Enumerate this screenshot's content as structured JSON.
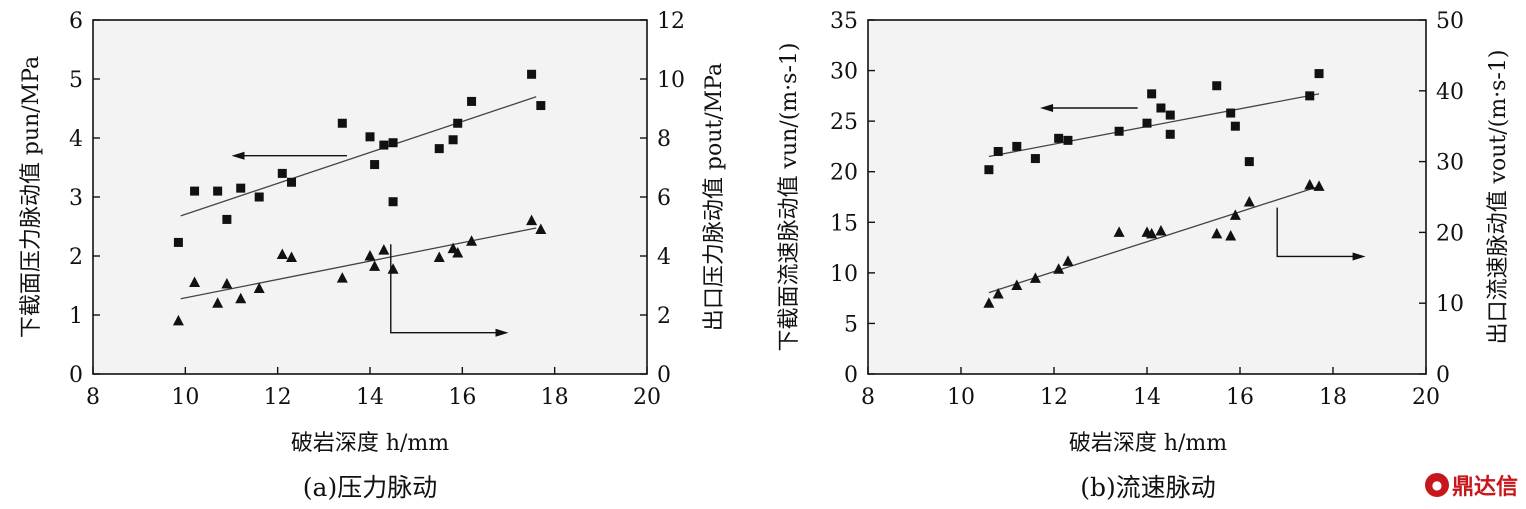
{
  "chart_data": [
    {
      "type": "scatter",
      "caption": "(a)压力脉动",
      "xlabel": "破岩深度 h/mm",
      "ylabel_left": "下截面压力脉动值 pun/MPa",
      "ylabel_right": "出口压力脉动值 pout/MPa",
      "xlim": [
        8,
        20
      ],
      "xticks": [
        "8",
        "10",
        "12",
        "14",
        "16",
        "18",
        "20"
      ],
      "ylim_left": [
        0,
        6
      ],
      "yticks_left": [
        "0",
        "1",
        "2",
        "3",
        "4",
        "5",
        "6"
      ],
      "ylim_right": [
        0,
        12
      ],
      "yticks_right": [
        "0",
        "2",
        "4",
        "6",
        "8",
        "10",
        "12"
      ],
      "series": [
        {
          "marker": "square",
          "axis": "left",
          "points": [
            [
              9.85,
              2.23
            ],
            [
              10.2,
              3.1
            ],
            [
              10.7,
              3.1
            ],
            [
              10.9,
              2.62
            ],
            [
              11.2,
              3.15
            ],
            [
              11.6,
              3.0
            ],
            [
              12.1,
              3.4
            ],
            [
              12.3,
              3.25
            ],
            [
              13.4,
              4.25
            ],
            [
              14.0,
              4.02
            ],
            [
              14.1,
              3.55
            ],
            [
              14.3,
              3.88
            ],
            [
              14.5,
              3.92
            ],
            [
              14.5,
              2.92
            ],
            [
              15.5,
              3.82
            ],
            [
              15.8,
              3.97
            ],
            [
              15.9,
              4.25
            ],
            [
              16.2,
              4.62
            ],
            [
              17.5,
              5.08
            ],
            [
              17.7,
              4.55
            ]
          ],
          "fit": [
            [
              9.9,
              2.68
            ],
            [
              17.6,
              4.7
            ]
          ]
        },
        {
          "marker": "triangle",
          "axis": "right",
          "points": [
            [
              9.85,
              1.8
            ],
            [
              10.2,
              3.1
            ],
            [
              10.7,
              2.4
            ],
            [
              10.9,
              3.05
            ],
            [
              11.2,
              2.55
            ],
            [
              11.6,
              2.9
            ],
            [
              12.1,
              4.05
            ],
            [
              12.3,
              3.95
            ],
            [
              13.4,
              3.25
            ],
            [
              14.0,
              4.0
            ],
            [
              14.1,
              3.65
            ],
            [
              14.3,
              4.2
            ],
            [
              14.5,
              3.55
            ],
            [
              15.5,
              3.95
            ],
            [
              15.8,
              4.25
            ],
            [
              15.9,
              4.1
            ],
            [
              16.2,
              4.5
            ],
            [
              17.5,
              5.2
            ],
            [
              17.7,
              4.9
            ]
          ],
          "fit": [
            [
              9.9,
              2.55
            ],
            [
              17.6,
              4.95
            ]
          ]
        }
      ],
      "arrow_left": {
        "from": [
          13.5,
          3.7
        ],
        "to": [
          11.0,
          3.7
        ],
        "axis": "left"
      },
      "arrow_right": {
        "from": [
          14.45,
          4.4
        ],
        "to": [
          14.45,
          1.4
        ],
        "end": [
          17.0,
          1.4
        ],
        "axis": "right"
      }
    },
    {
      "type": "scatter",
      "caption": "(b)流速脉动",
      "xlabel": "破岩深度 h/mm",
      "ylabel_left": "下截面流速脉动值 vun/(m·s-1)",
      "ylabel_right": "出口流速脉动值 vout/(m·s-1)",
      "xlim": [
        8,
        20
      ],
      "xticks": [
        "8",
        "10",
        "12",
        "14",
        "16",
        "18",
        "20"
      ],
      "ylim_left": [
        0,
        35
      ],
      "yticks_left": [
        "0",
        "5",
        "10",
        "15",
        "20",
        "25",
        "30",
        "35"
      ],
      "ylim_right": [
        0,
        50
      ],
      "yticks_right": [
        "0",
        "10",
        "20",
        "30",
        "40",
        "50"
      ],
      "series": [
        {
          "marker": "square",
          "axis": "left",
          "points": [
            [
              10.6,
              20.2
            ],
            [
              10.8,
              22.0
            ],
            [
              11.2,
              22.5
            ],
            [
              11.6,
              21.3
            ],
            [
              12.1,
              23.3
            ],
            [
              12.3,
              23.1
            ],
            [
              13.4,
              24.0
            ],
            [
              14.0,
              24.8
            ],
            [
              14.1,
              27.7
            ],
            [
              14.3,
              26.3
            ],
            [
              14.5,
              25.6
            ],
            [
              14.5,
              23.7
            ],
            [
              15.5,
              28.5
            ],
            [
              15.8,
              25.8
            ],
            [
              15.9,
              24.5
            ],
            [
              16.2,
              21.0
            ],
            [
              17.5,
              27.5
            ],
            [
              17.7,
              29.7
            ]
          ],
          "fit": [
            [
              10.6,
              21.5
            ],
            [
              17.7,
              27.7
            ]
          ]
        },
        {
          "marker": "triangle",
          "axis": "right",
          "points": [
            [
              10.6,
              10.0
            ],
            [
              10.8,
              11.3
            ],
            [
              11.2,
              12.5
            ],
            [
              11.6,
              13.5
            ],
            [
              12.1,
              14.8
            ],
            [
              12.3,
              15.9
            ],
            [
              13.4,
              20.0
            ],
            [
              14.0,
              20.0
            ],
            [
              14.1,
              19.8
            ],
            [
              14.3,
              20.2
            ],
            [
              15.5,
              19.8
            ],
            [
              15.8,
              19.5
            ],
            [
              15.9,
              22.4
            ],
            [
              16.2,
              24.3
            ],
            [
              17.5,
              26.7
            ],
            [
              17.7,
              26.5
            ]
          ],
          "fit": [
            [
              10.6,
              11.5
            ],
            [
              17.7,
              26.5
            ]
          ]
        }
      ],
      "arrow_left": {
        "from": [
          13.8,
          26.3
        ],
        "to": [
          11.7,
          26.3
        ],
        "axis": "left"
      },
      "arrow_right": {
        "from": [
          16.8,
          23.5
        ],
        "to": [
          16.8,
          16.6
        ],
        "end": [
          18.7,
          16.6
        ],
        "axis": "right"
      }
    }
  ],
  "watermark": "鼎达信"
}
